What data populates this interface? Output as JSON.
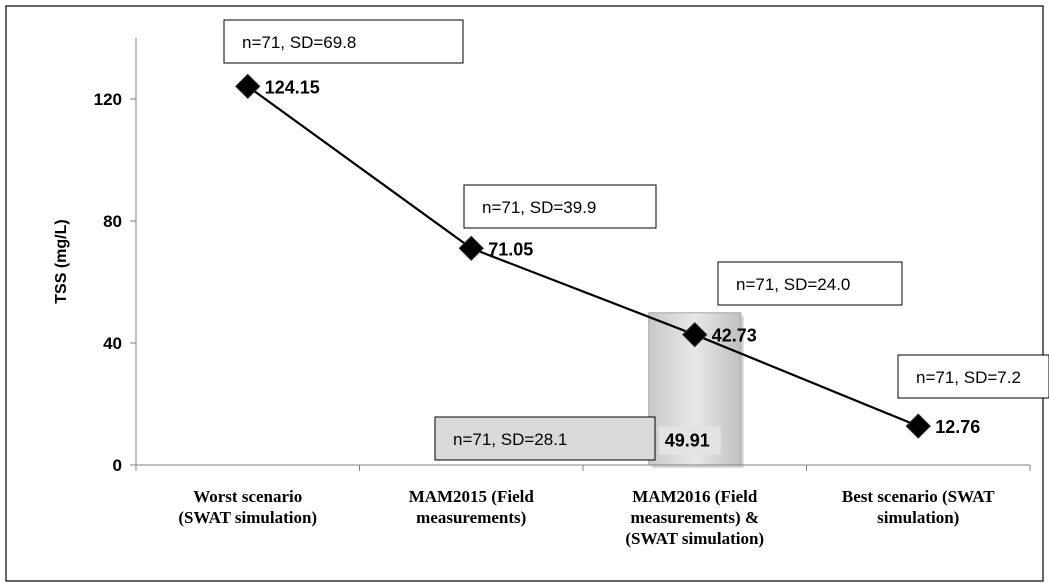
{
  "chart_data": {
    "type": "line",
    "ylabel": "TSS (mg/L)",
    "ylim": [
      0,
      140
    ],
    "yticks": [
      0,
      40,
      80,
      120
    ],
    "categories": [
      [
        "Worst scenario",
        "(SWAT simulation)"
      ],
      [
        "MAM2015 (Field",
        "measurements)"
      ],
      [
        "MAM2016 (Field",
        "measurements) &",
        "(SWAT simulation)"
      ],
      [
        "Best scenario (SWAT",
        "simulation)"
      ]
    ],
    "series": [
      {
        "type": "line",
        "marker": "diamond",
        "values": [
          124.15,
          71.05,
          42.73,
          12.76
        ],
        "data_labels": [
          "124.15",
          "71.05",
          "42.73",
          "12.76"
        ]
      },
      {
        "type": "bar",
        "category_index": 2,
        "value": 49.91,
        "data_label": "49.91"
      }
    ],
    "annotations": [
      "n=71, SD=69.8",
      "n=71, SD=39.9",
      "n=71, SD=24.0",
      "n=71, SD=7.2",
      "n=71, SD=28.1"
    ],
    "colors": {
      "line": "#000000",
      "marker": "#000000",
      "bar_fill": "#d9d9d9",
      "bar_stroke": "#a6a6a6",
      "axis": "#808080",
      "shaded_note_fill": "#d9d9d9"
    }
  }
}
